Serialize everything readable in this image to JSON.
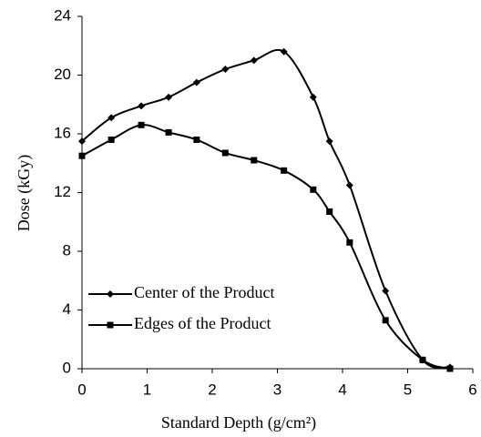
{
  "chart_data": {
    "type": "line",
    "xlabel": "Standard Depth (g/cm²)",
    "ylabel": "Dose (kGy)",
    "x": [
      0,
      0.45,
      0.91,
      1.33,
      1.76,
      2.2,
      2.64,
      3.1,
      3.55,
      3.8,
      4.11,
      4.66,
      5.23,
      5.65
    ],
    "series": [
      {
        "name": "Center of the Product",
        "color": "#000000",
        "marker": "diamond",
        "values": [
          15.5,
          17.1,
          17.9,
          18.5,
          19.5,
          20.4,
          21.0,
          21.6,
          18.5,
          15.5,
          12.5,
          5.3,
          0.6,
          0.1
        ]
      },
      {
        "name": "Edges of the Product",
        "color": "#000000",
        "marker": "square",
        "values": [
          14.5,
          15.6,
          16.6,
          16.1,
          15.6,
          14.7,
          14.2,
          13.5,
          12.2,
          10.7,
          8.6,
          3.3,
          0.6,
          0.0
        ]
      }
    ],
    "xlim": [
      0,
      6
    ],
    "xticks": [
      0,
      1,
      2,
      3,
      4,
      5,
      6
    ],
    "ylim": [
      0,
      24
    ],
    "yticks": [
      0,
      4,
      8,
      12,
      16,
      20,
      24
    ],
    "smooth": true,
    "legend": "lower left"
  }
}
